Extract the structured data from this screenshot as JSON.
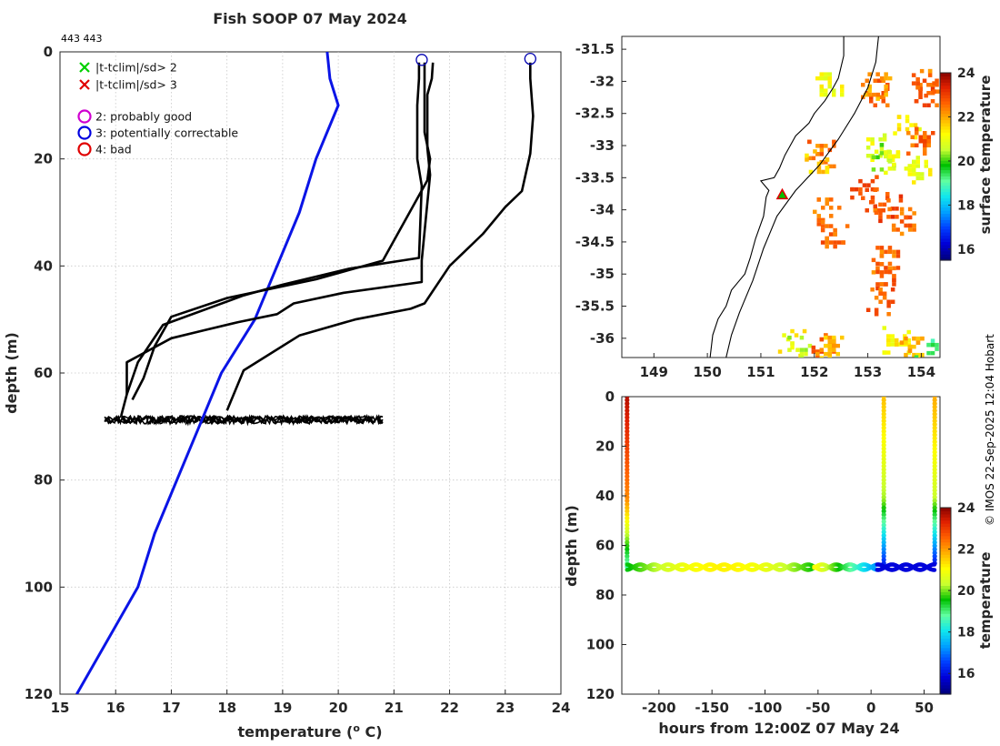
{
  "title": "Fish SOOP 07 May 2024",
  "id_label": "443 443",
  "credit": "© IMOS 22-Sep-2025 12:04 Hobart",
  "colors": {
    "climatology": "#0a14e6",
    "profile": "#000000",
    "axis": "#262626"
  },
  "colormap": [
    "#00007f",
    "#0000d8",
    "#0040ff",
    "#00a0ff",
    "#10e6ee",
    "#60ffa0",
    "#00c000",
    "#c8ff30",
    "#ffff00",
    "#ffb000",
    "#ff6000",
    "#e02000",
    "#800000"
  ],
  "colormap_min": 15.5,
  "colormap_max": 24,
  "chart_data": [
    {
      "type": "line",
      "name": "temperature-profile",
      "xlabel": "temperature (o C)",
      "ylabel": "depth (m)",
      "xlim": [
        15,
        24
      ],
      "ylim": [
        120,
        0
      ],
      "xticks": [
        15,
        16,
        17,
        18,
        19,
        20,
        21,
        22,
        23,
        24
      ],
      "yticks": [
        0,
        20,
        40,
        60,
        80,
        100,
        120
      ],
      "legend": [
        {
          "marker": "x",
          "color": "#00d000",
          "label": "|t-tclim|/sd> 2"
        },
        {
          "marker": "x",
          "color": "#e00000",
          "label": "|t-tclim|/sd> 3"
        },
        {
          "marker": "o",
          "color": "#d000d0",
          "label": "2: probably good"
        },
        {
          "marker": "o",
          "color": "#0000e0",
          "label": "3: potentially correctable"
        },
        {
          "marker": "o",
          "color": "#e00000",
          "label": "4: bad"
        }
      ],
      "series": [
        {
          "name": "climatology",
          "x": [
            19.8,
            19.85,
            20.0,
            19.6,
            19.3,
            18.9,
            18.5,
            17.9,
            17.5,
            17.3,
            16.7,
            16.4,
            15.3
          ],
          "y": [
            0,
            5,
            10,
            20,
            30,
            40,
            50,
            60,
            70,
            75,
            90,
            100,
            120
          ]
        },
        {
          "name": "profile-1",
          "x": [
            21.45,
            21.45,
            21.42,
            21.42,
            21.5,
            21.45,
            20.2,
            19.0,
            18.3,
            16.85,
            16.4,
            16.2,
            16.1
          ],
          "y": [
            2,
            5,
            10,
            20,
            25,
            38.5,
            40.5,
            43.5,
            45.5,
            51,
            58,
            64,
            68
          ]
        },
        {
          "name": "profile-2",
          "x": [
            21.55,
            21.55,
            21.55,
            21.65,
            21.6,
            20.8,
            19.6,
            18.0,
            17.0,
            16.7,
            16.5,
            16.3
          ],
          "y": [
            2,
            5,
            15,
            20,
            24,
            39,
            42.5,
            46,
            49.5,
            55,
            61,
            65
          ]
        },
        {
          "name": "profile-3",
          "x": [
            21.7,
            21.68,
            21.6,
            21.6,
            21.65,
            21.5,
            21.5,
            20.1,
            19.2,
            18.9,
            18.2,
            17.6,
            17.0,
            16.2,
            16.2
          ],
          "y": [
            2,
            5,
            8,
            18,
            23,
            39,
            43,
            45,
            47,
            49,
            50.5,
            52,
            53.5,
            58,
            64
          ]
        },
        {
          "name": "profile-4",
          "x": [
            23.45,
            23.45,
            23.5,
            23.45,
            23.3,
            23.0,
            22.6,
            22.0,
            21.55,
            21.3,
            20.3,
            19.3,
            18.3,
            18.0
          ],
          "y": [
            2,
            5,
            12,
            19,
            26,
            29,
            34,
            40,
            47,
            48,
            50,
            53,
            59.5,
            67
          ]
        }
      ],
      "bottom_band": {
        "x_min": 15.8,
        "x_max": 20.8,
        "y_min": 68,
        "y_max": 69.5
      },
      "surface_markers": [
        {
          "x": 21.5,
          "y": 1.5
        },
        {
          "x": 23.45,
          "y": 1.3
        }
      ]
    },
    {
      "type": "scatter",
      "name": "surface-temperature-map",
      "colorbar_label": "surface temperature",
      "xlim": [
        148.4,
        154.35
      ],
      "ylim": [
        -36.3,
        -31.3
      ],
      "xticks": [
        149,
        150,
        151,
        152,
        153,
        154
      ],
      "yticks": [
        -31.5,
        -32,
        -32.5,
        -33,
        -33.5,
        -34,
        -34.5,
        -35,
        -35.5,
        -36
      ],
      "ytick_labels": [
        "-31.5",
        "-32",
        "-32.5",
        "-33",
        "-33.5",
        "-34",
        "-34.5",
        "-35",
        "-35.5",
        "-36"
      ],
      "cbar_ticks": [
        16,
        18,
        20,
        22,
        24
      ],
      "cbar_range": [
        15.5,
        24
      ],
      "marker": {
        "lon": 151.4,
        "lat": -33.77
      },
      "coastline": [
        [
          152.55,
          -31.3
        ],
        [
          152.55,
          -31.6
        ],
        [
          152.45,
          -31.95
        ],
        [
          152.35,
          -32.1
        ],
        [
          152.2,
          -32.3
        ],
        [
          152.0,
          -32.5
        ],
        [
          151.9,
          -32.65
        ],
        [
          151.65,
          -32.85
        ],
        [
          151.55,
          -33.0
        ],
        [
          151.45,
          -33.15
        ],
        [
          151.35,
          -33.35
        ],
        [
          151.25,
          -33.5
        ],
        [
          151.0,
          -33.55
        ],
        [
          151.15,
          -33.7
        ],
        [
          151.1,
          -33.8
        ],
        [
          151.05,
          -34.1
        ],
        [
          150.9,
          -34.45
        ],
        [
          150.8,
          -34.75
        ],
        [
          150.7,
          -35.0
        ],
        [
          150.6,
          -35.1
        ],
        [
          150.45,
          -35.25
        ],
        [
          150.35,
          -35.5
        ],
        [
          150.2,
          -35.7
        ],
        [
          150.1,
          -35.95
        ],
        [
          150.05,
          -36.3
        ]
      ],
      "isobath": [
        [
          153.2,
          -31.3
        ],
        [
          153.15,
          -31.7
        ],
        [
          153.0,
          -32.1
        ],
        [
          152.75,
          -32.5
        ],
        [
          152.45,
          -32.9
        ],
        [
          152.1,
          -33.3
        ],
        [
          151.65,
          -33.7
        ],
        [
          151.3,
          -34.1
        ],
        [
          151.05,
          -34.6
        ],
        [
          150.85,
          -35.1
        ],
        [
          150.6,
          -35.6
        ],
        [
          150.45,
          -35.95
        ],
        [
          150.35,
          -36.3
        ]
      ],
      "sst_patches": [
        {
          "lon": 154.1,
          "lat": -32.15,
          "temp": 22.7
        },
        {
          "lon": 154.05,
          "lat": -32.0,
          "temp": 22.4
        },
        {
          "lon": 153.1,
          "lat": -32.15,
          "temp": 22.6
        },
        {
          "lon": 153.15,
          "lat": -32.05,
          "temp": 22.0
        },
        {
          "lon": 152.25,
          "lat": -32.05,
          "temp": 21.0
        },
        {
          "lon": 153.7,
          "lat": -32.65,
          "temp": 21.2
        },
        {
          "lon": 153.95,
          "lat": -32.9,
          "temp": 22.6
        },
        {
          "lon": 153.2,
          "lat": -33.0,
          "temp": 20.9
        },
        {
          "lon": 153.3,
          "lat": -33.15,
          "temp": 20.3
        },
        {
          "lon": 153.45,
          "lat": -33.2,
          "temp": 21.0
        },
        {
          "lon": 153.9,
          "lat": -33.35,
          "temp": 21.0
        },
        {
          "lon": 152.1,
          "lat": -33.1,
          "temp": 22.4
        },
        {
          "lon": 152.05,
          "lat": -33.25,
          "temp": 21.6
        },
        {
          "lon": 152.9,
          "lat": -33.65,
          "temp": 22.8
        },
        {
          "lon": 153.1,
          "lat": -33.85,
          "temp": 22.6
        },
        {
          "lon": 153.35,
          "lat": -33.95,
          "temp": 22.8
        },
        {
          "lon": 153.6,
          "lat": -34.15,
          "temp": 22.5
        },
        {
          "lon": 152.2,
          "lat": -34.0,
          "temp": 22.4
        },
        {
          "lon": 152.35,
          "lat": -34.35,
          "temp": 22.6
        },
        {
          "lon": 153.3,
          "lat": -34.75,
          "temp": 22.5
        },
        {
          "lon": 153.3,
          "lat": -35.0,
          "temp": 22.7
        },
        {
          "lon": 153.2,
          "lat": -35.4,
          "temp": 22.6
        },
        {
          "lon": 151.55,
          "lat": -36.05,
          "temp": 21.2
        },
        {
          "lon": 151.65,
          "lat": -36.15,
          "temp": 20.6
        },
        {
          "lon": 152.1,
          "lat": -36.05,
          "temp": 22.8
        },
        {
          "lon": 152.25,
          "lat": -36.15,
          "temp": 21.8
        },
        {
          "lon": 153.5,
          "lat": -36.0,
          "temp": 21.2
        },
        {
          "lon": 153.75,
          "lat": -36.1,
          "temp": 21.8
        },
        {
          "lon": 154.1,
          "lat": -36.2,
          "temp": 19.2
        }
      ]
    },
    {
      "type": "scatter",
      "name": "depth-time-section",
      "xlabel": "hours from 12:00Z 07 May 24",
      "ylabel": "depth (m)",
      "colorbar_label": "temperature",
      "xlim": [
        -235,
        65
      ],
      "ylim": [
        120,
        0
      ],
      "xticks": [
        -200,
        -150,
        -100,
        -50,
        0,
        50
      ],
      "yticks": [
        0,
        20,
        40,
        60,
        80,
        100,
        120
      ],
      "cbar_ticks": [
        16,
        18,
        20,
        22,
        24
      ],
      "cbar_range": [
        15,
        24
      ],
      "profiles": [
        {
          "hours": -230,
          "t_surface": 23.6,
          "t_bottom": 18.5,
          "bottom_depth": 69
        },
        {
          "hours": 12,
          "t_surface": 21.6,
          "t_bottom": 16.0,
          "bottom_depth": 69
        },
        {
          "hours": 60,
          "t_surface": 21.8,
          "t_bottom": 16.0,
          "bottom_depth": 68
        }
      ],
      "bottom_track": {
        "x_start": -230,
        "x_end": 60,
        "depth": 68.8,
        "t_start": 19.4,
        "t_mid": 21.1,
        "t_end": 15.8
      }
    }
  ]
}
